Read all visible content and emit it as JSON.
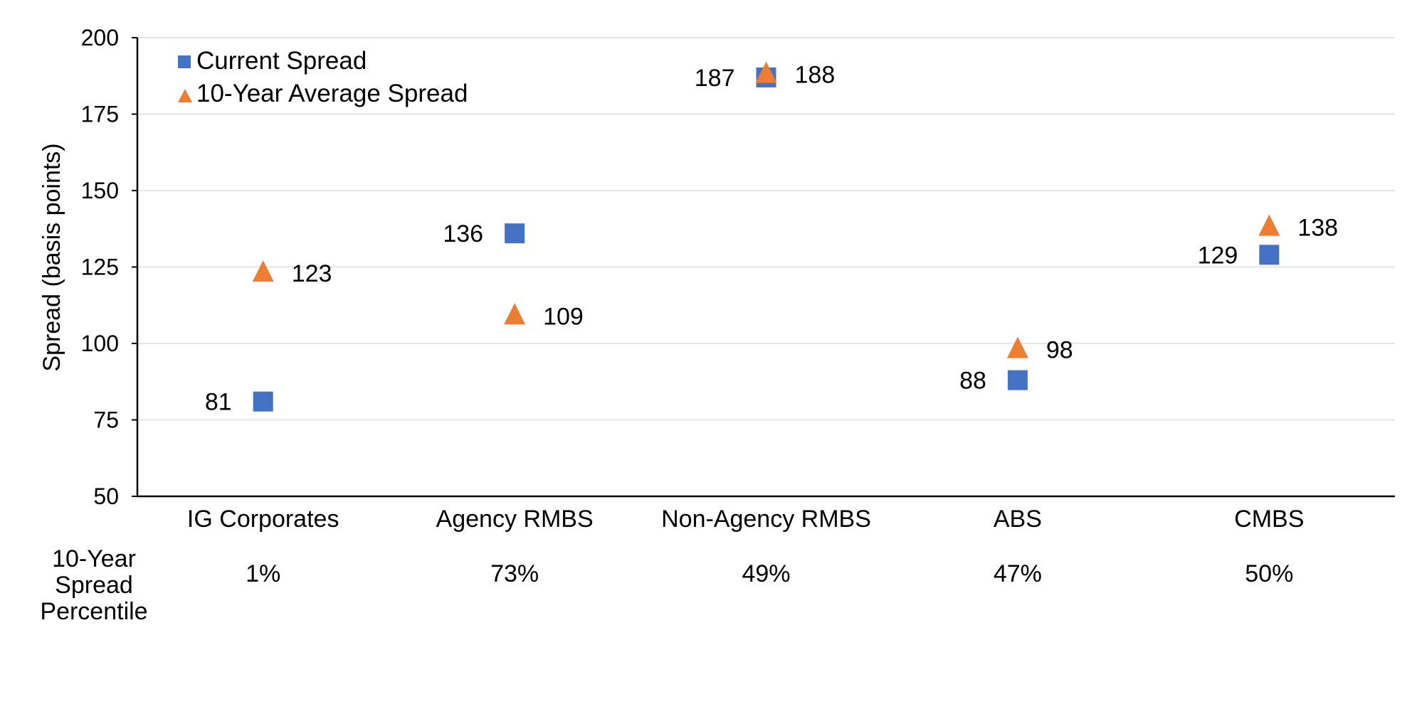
{
  "chart_data": {
    "type": "scatter",
    "ylabel": "Spread (basis points)",
    "xlabel": "",
    "ylim": [
      50,
      200
    ],
    "yticks": [
      50,
      75,
      100,
      125,
      150,
      175,
      200
    ],
    "grid": true,
    "legend_position": "top-left",
    "categories": [
      "IG Corporates",
      "Agency RMBS",
      "Non-Agency RMBS",
      "ABS",
      "CMBS"
    ],
    "series": [
      {
        "name": "Current Spread",
        "marker": "square",
        "color": "#4472C4",
        "values": [
          81,
          136,
          187,
          88,
          129
        ]
      },
      {
        "name": "10-Year Average Spread",
        "marker": "triangle",
        "color": "#ED7D31",
        "values": [
          123,
          109,
          188,
          98,
          138
        ]
      }
    ],
    "percentile": {
      "title_lines": [
        "10-Year",
        "Spread",
        "Percentile"
      ],
      "values": [
        "1%",
        "73%",
        "49%",
        "47%",
        "50%"
      ]
    }
  }
}
